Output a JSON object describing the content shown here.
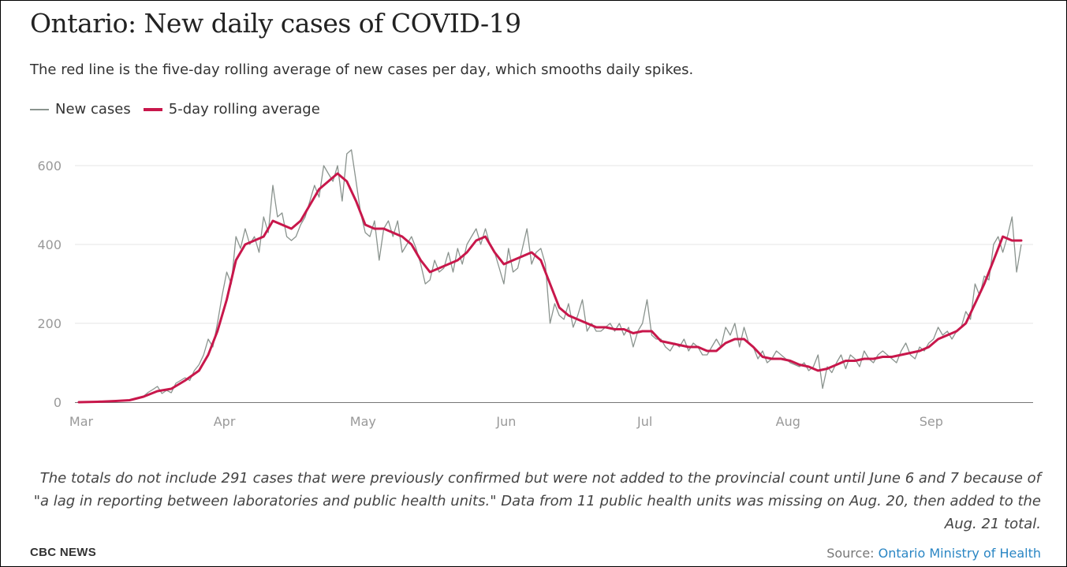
{
  "header": {
    "title": "Ontario: New daily cases of COVID-19",
    "subtitle": "The red line is the five-day rolling average of new cases per day, which smooths daily spikes."
  },
  "legend": {
    "new_cases": "New cases",
    "rolling": "5-day rolling average"
  },
  "colors": {
    "new_cases": "#8a938e",
    "rolling": "#c8174b",
    "grid": "#e6e6e6",
    "link": "#2a86c4"
  },
  "footer": {
    "note": "The totals do not include 291 cases that were previously confirmed but were not added to the provincial count until June 6 and 7 because of \"a lag in reporting between laboratories and public health units.\" Data from 11 public health units was missing on Aug. 20, then added to the Aug. 21 total.",
    "brand": "CBC NEWS",
    "source_label": "Source: ",
    "source_link": "Ontario Ministry of Health"
  },
  "chart_data": {
    "type": "line",
    "ylim": [
      0,
      600
    ],
    "grid": true,
    "y_ticks": [
      "0",
      "200",
      "400",
      "600"
    ],
    "x_ticks": [
      "Mar",
      "Apr",
      "May",
      "Jun",
      "Jul",
      "Aug",
      "Sep"
    ],
    "x_range_days": [
      0,
      204
    ],
    "series": [
      {
        "name": "New cases",
        "points": [
          [
            0,
            0
          ],
          [
            5,
            2
          ],
          [
            8,
            3
          ],
          [
            10,
            4
          ],
          [
            12,
            8
          ],
          [
            14,
            15
          ],
          [
            15,
            25
          ],
          [
            16,
            32
          ],
          [
            17,
            40
          ],
          [
            18,
            22
          ],
          [
            19,
            30
          ],
          [
            20,
            24
          ],
          [
            21,
            48
          ],
          [
            22,
            55
          ],
          [
            23,
            62
          ],
          [
            24,
            55
          ],
          [
            25,
            80
          ],
          [
            26,
            95
          ],
          [
            27,
            120
          ],
          [
            28,
            160
          ],
          [
            29,
            140
          ],
          [
            30,
            200
          ],
          [
            31,
            270
          ],
          [
            32,
            330
          ],
          [
            33,
            300
          ],
          [
            34,
            420
          ],
          [
            35,
            390
          ],
          [
            36,
            440
          ],
          [
            37,
            400
          ],
          [
            38,
            420
          ],
          [
            39,
            380
          ],
          [
            40,
            470
          ],
          [
            41,
            430
          ],
          [
            42,
            550
          ],
          [
            43,
            470
          ],
          [
            44,
            480
          ],
          [
            45,
            420
          ],
          [
            46,
            410
          ],
          [
            47,
            420
          ],
          [
            48,
            450
          ],
          [
            49,
            470
          ],
          [
            50,
            510
          ],
          [
            51,
            550
          ],
          [
            52,
            520
          ],
          [
            53,
            600
          ],
          [
            54,
            580
          ],
          [
            55,
            560
          ],
          [
            56,
            600
          ],
          [
            57,
            510
          ],
          [
            58,
            630
          ],
          [
            59,
            640
          ],
          [
            60,
            560
          ],
          [
            61,
            480
          ],
          [
            62,
            430
          ],
          [
            63,
            420
          ],
          [
            64,
            460
          ],
          [
            65,
            360
          ],
          [
            66,
            440
          ],
          [
            67,
            460
          ],
          [
            68,
            420
          ],
          [
            69,
            460
          ],
          [
            70,
            380
          ],
          [
            71,
            400
          ],
          [
            72,
            420
          ],
          [
            73,
            390
          ],
          [
            74,
            350
          ],
          [
            75,
            300
          ],
          [
            76,
            310
          ],
          [
            77,
            360
          ],
          [
            78,
            330
          ],
          [
            79,
            340
          ],
          [
            80,
            380
          ],
          [
            81,
            330
          ],
          [
            82,
            390
          ],
          [
            83,
            350
          ],
          [
            84,
            400
          ],
          [
            85,
            420
          ],
          [
            86,
            440
          ],
          [
            87,
            400
          ],
          [
            88,
            440
          ],
          [
            89,
            400
          ],
          [
            90,
            380
          ],
          [
            91,
            340
          ],
          [
            92,
            300
          ],
          [
            93,
            390
          ],
          [
            94,
            330
          ],
          [
            95,
            340
          ],
          [
            96,
            390
          ],
          [
            97,
            440
          ],
          [
            98,
            350
          ],
          [
            99,
            380
          ],
          [
            100,
            390
          ],
          [
            101,
            350
          ],
          [
            102,
            200
          ],
          [
            103,
            250
          ],
          [
            104,
            220
          ],
          [
            105,
            210
          ],
          [
            106,
            250
          ],
          [
            107,
            190
          ],
          [
            108,
            220
          ],
          [
            109,
            260
          ],
          [
            110,
            180
          ],
          [
            111,
            200
          ],
          [
            112,
            180
          ],
          [
            113,
            180
          ],
          [
            114,
            190
          ],
          [
            115,
            200
          ],
          [
            116,
            180
          ],
          [
            117,
            200
          ],
          [
            118,
            170
          ],
          [
            119,
            190
          ],
          [
            120,
            140
          ],
          [
            121,
            180
          ],
          [
            122,
            200
          ],
          [
            123,
            260
          ],
          [
            124,
            170
          ],
          [
            125,
            160
          ],
          [
            126,
            160
          ],
          [
            127,
            140
          ],
          [
            128,
            130
          ],
          [
            129,
            150
          ],
          [
            130,
            140
          ],
          [
            131,
            160
          ],
          [
            132,
            130
          ],
          [
            133,
            150
          ],
          [
            134,
            140
          ],
          [
            135,
            120
          ],
          [
            136,
            120
          ],
          [
            137,
            140
          ],
          [
            138,
            160
          ],
          [
            139,
            140
          ],
          [
            140,
            190
          ],
          [
            141,
            170
          ],
          [
            142,
            200
          ],
          [
            143,
            140
          ],
          [
            144,
            190
          ],
          [
            145,
            150
          ],
          [
            146,
            140
          ],
          [
            147,
            110
          ],
          [
            148,
            130
          ],
          [
            149,
            100
          ],
          [
            150,
            110
          ],
          [
            151,
            130
          ],
          [
            152,
            120
          ],
          [
            153,
            110
          ],
          [
            154,
            100
          ],
          [
            155,
            95
          ],
          [
            156,
            90
          ],
          [
            157,
            100
          ],
          [
            158,
            80
          ],
          [
            159,
            90
          ],
          [
            160,
            120
          ],
          [
            161,
            35
          ],
          [
            162,
            90
          ],
          [
            163,
            75
          ],
          [
            164,
            100
          ],
          [
            165,
            120
          ],
          [
            166,
            85
          ],
          [
            167,
            120
          ],
          [
            168,
            110
          ],
          [
            169,
            90
          ],
          [
            170,
            130
          ],
          [
            171,
            110
          ],
          [
            172,
            100
          ],
          [
            173,
            120
          ],
          [
            174,
            130
          ],
          [
            175,
            120
          ],
          [
            176,
            110
          ],
          [
            177,
            100
          ],
          [
            178,
            130
          ],
          [
            179,
            150
          ],
          [
            180,
            120
          ],
          [
            181,
            110
          ],
          [
            182,
            140
          ],
          [
            183,
            130
          ],
          [
            184,
            150
          ],
          [
            185,
            160
          ],
          [
            186,
            190
          ],
          [
            187,
            170
          ],
          [
            188,
            180
          ],
          [
            189,
            160
          ],
          [
            190,
            180
          ],
          [
            191,
            190
          ],
          [
            192,
            230
          ],
          [
            193,
            210
          ],
          [
            194,
            300
          ],
          [
            195,
            270
          ],
          [
            196,
            320
          ],
          [
            197,
            310
          ],
          [
            198,
            400
          ],
          [
            199,
            420
          ],
          [
            200,
            380
          ],
          [
            201,
            420
          ],
          [
            202,
            470
          ],
          [
            203,
            330
          ],
          [
            204,
            400
          ]
        ]
      },
      {
        "name": "5-day rolling average",
        "points": [
          [
            0,
            0
          ],
          [
            4,
            1
          ],
          [
            8,
            3
          ],
          [
            11,
            5
          ],
          [
            14,
            14
          ],
          [
            17,
            28
          ],
          [
            20,
            34
          ],
          [
            23,
            55
          ],
          [
            26,
            80
          ],
          [
            28,
            120
          ],
          [
            30,
            180
          ],
          [
            32,
            260
          ],
          [
            34,
            360
          ],
          [
            36,
            400
          ],
          [
            38,
            410
          ],
          [
            40,
            420
          ],
          [
            42,
            460
          ],
          [
            44,
            450
          ],
          [
            46,
            440
          ],
          [
            48,
            460
          ],
          [
            50,
            500
          ],
          [
            52,
            540
          ],
          [
            54,
            560
          ],
          [
            56,
            580
          ],
          [
            58,
            560
          ],
          [
            60,
            510
          ],
          [
            62,
            450
          ],
          [
            64,
            440
          ],
          [
            66,
            440
          ],
          [
            68,
            430
          ],
          [
            70,
            420
          ],
          [
            72,
            400
          ],
          [
            74,
            360
          ],
          [
            76,
            330
          ],
          [
            78,
            340
          ],
          [
            80,
            350
          ],
          [
            82,
            360
          ],
          [
            84,
            380
          ],
          [
            86,
            410
          ],
          [
            88,
            420
          ],
          [
            90,
            380
          ],
          [
            92,
            350
          ],
          [
            94,
            360
          ],
          [
            96,
            370
          ],
          [
            98,
            380
          ],
          [
            100,
            360
          ],
          [
            102,
            300
          ],
          [
            104,
            240
          ],
          [
            106,
            220
          ],
          [
            108,
            210
          ],
          [
            110,
            200
          ],
          [
            112,
            190
          ],
          [
            114,
            190
          ],
          [
            116,
            185
          ],
          [
            118,
            185
          ],
          [
            120,
            175
          ],
          [
            122,
            180
          ],
          [
            124,
            180
          ],
          [
            126,
            155
          ],
          [
            128,
            150
          ],
          [
            130,
            145
          ],
          [
            132,
            140
          ],
          [
            134,
            140
          ],
          [
            136,
            130
          ],
          [
            138,
            130
          ],
          [
            140,
            150
          ],
          [
            142,
            160
          ],
          [
            144,
            160
          ],
          [
            146,
            140
          ],
          [
            148,
            115
          ],
          [
            150,
            110
          ],
          [
            152,
            110
          ],
          [
            154,
            105
          ],
          [
            156,
            95
          ],
          [
            158,
            90
          ],
          [
            160,
            80
          ],
          [
            162,
            85
          ],
          [
            164,
            95
          ],
          [
            166,
            105
          ],
          [
            168,
            105
          ],
          [
            170,
            110
          ],
          [
            172,
            110
          ],
          [
            174,
            115
          ],
          [
            176,
            115
          ],
          [
            178,
            120
          ],
          [
            180,
            125
          ],
          [
            182,
            130
          ],
          [
            184,
            140
          ],
          [
            186,
            160
          ],
          [
            188,
            170
          ],
          [
            190,
            180
          ],
          [
            192,
            200
          ],
          [
            194,
            250
          ],
          [
            196,
            300
          ],
          [
            198,
            360
          ],
          [
            200,
            420
          ],
          [
            202,
            410
          ],
          [
            204,
            410
          ]
        ]
      }
    ]
  }
}
